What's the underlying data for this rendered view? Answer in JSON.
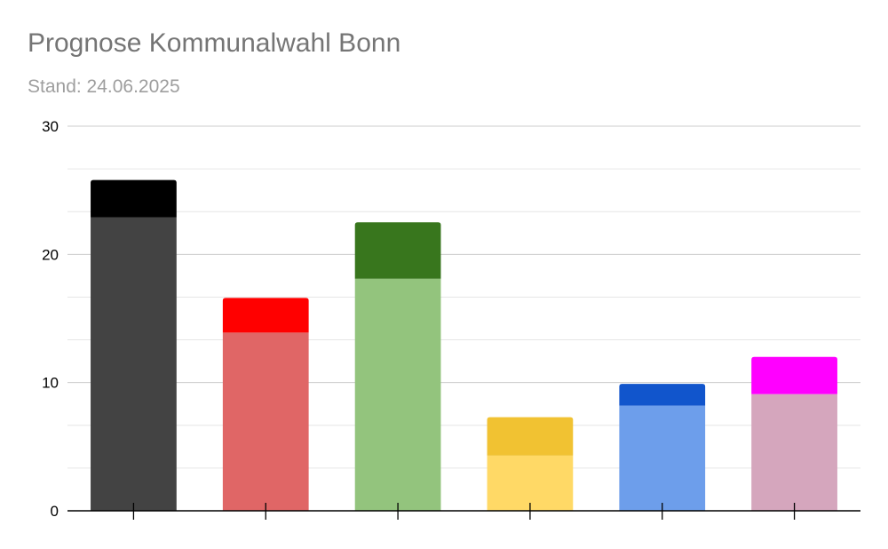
{
  "chart_data": {
    "type": "bar",
    "stacked": true,
    "title": "Prognose Kommunalwahl Bonn",
    "subtitle": "Stand: 24.06.2025",
    "categories": [
      "",
      "",
      "",
      "",
      "",
      ""
    ],
    "series": [
      {
        "values": [
          22.9,
          13.9,
          18.1,
          4.3,
          8.2,
          9.1
        ]
      },
      {
        "values": [
          2.9,
          2.7,
          4.4,
          3.0,
          1.7,
          2.9
        ]
      }
    ],
    "bar_colors": [
      [
        "#434343",
        "#000000"
      ],
      [
        "#e06666",
        "#ff0000"
      ],
      [
        "#93c47d",
        "#38761d"
      ],
      [
        "#ffd966",
        "#f1c232"
      ],
      [
        "#6d9eeb",
        "#1155cc"
      ],
      [
        "#d5a6bd",
        "#ff00ff"
      ]
    ],
    "yticks": [
      0,
      10,
      20,
      30
    ],
    "ylim": [
      0,
      30
    ],
    "minor_gridlines": true,
    "grid": true
  }
}
